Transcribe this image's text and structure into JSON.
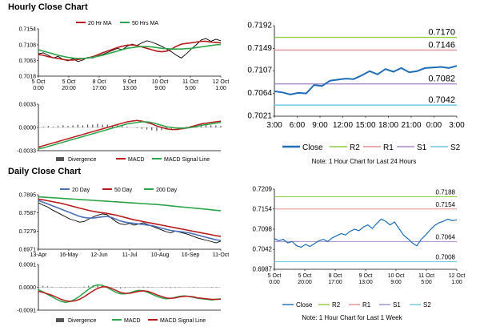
{
  "sections": {
    "hourly_title": "Hourly Close Chart",
    "daily_title": "Daily Close Chart"
  },
  "colors": {
    "close": "#1f6db4",
    "r2": "#8fce3c",
    "r1": "#e38f8f",
    "s1": "#a58cc9",
    "s2": "#6cc9df",
    "ma_red": "#b51c1c",
    "ma_green": "#2ca44a",
    "ma_blue": "#4a6fb8",
    "divergence": "#555555"
  },
  "chart_data": [
    {
      "id": "hourly_price",
      "type": "line",
      "title": "",
      "legend": [
        "20 Hr MA",
        "50 Hrs MA"
      ],
      "x_labels": [
        "5 Oct\n0:00",
        "5 Oct\n20:00",
        "8 Oct\n17:00",
        "9 Oct\n13:00",
        "10 Oct\n9:00",
        "11 Oct\n5:00",
        "12 Oct\n1:00"
      ],
      "y_ticks": [
        "0.7154",
        "0.7108",
        "0.7063",
        "0.7018"
      ],
      "ylim": [
        0.7018,
        0.7154
      ],
      "series": [
        {
          "name": "Close",
          "values": [
            0.7082,
            0.7085,
            0.7078,
            0.707,
            0.7075,
            0.7066,
            0.7062,
            0.7068,
            0.706,
            0.7064,
            0.7072,
            0.707,
            0.7076,
            0.708,
            0.7086,
            0.7092,
            0.7098,
            0.7094,
            0.7104,
            0.711,
            0.7106,
            0.7114,
            0.712,
            0.7116,
            0.711,
            0.7104,
            0.7096,
            0.7088,
            0.7078,
            0.707,
            0.7082,
            0.7096,
            0.7108,
            0.7122,
            0.7126,
            0.7118,
            0.7124,
            0.712
          ]
        },
        {
          "name": "20 Hr MA",
          "values": [
            0.708,
            0.7078,
            0.7074,
            0.7071,
            0.7069,
            0.7066,
            0.7064,
            0.7064,
            0.7066,
            0.7068,
            0.707,
            0.7074,
            0.7079,
            0.7085,
            0.709,
            0.7095,
            0.71,
            0.7104,
            0.7107,
            0.7108,
            0.7106,
            0.7102,
            0.7098,
            0.7094,
            0.709,
            0.7088,
            0.709,
            0.7096,
            0.7104,
            0.711,
            0.7112,
            0.7114,
            0.7116,
            0.7118,
            0.7118,
            0.7116,
            0.7115,
            0.7114
          ]
        },
        {
          "name": "50 Hrs MA",
          "values": [
            0.7094,
            0.709,
            0.7086,
            0.7082,
            0.7078,
            0.7075,
            0.7072,
            0.707,
            0.7069,
            0.7069,
            0.707,
            0.7072,
            0.7075,
            0.7078,
            0.7082,
            0.7086,
            0.709,
            0.7094,
            0.7098,
            0.71,
            0.7102,
            0.7103,
            0.7103,
            0.7102,
            0.71,
            0.7098,
            0.7097,
            0.7096,
            0.7096,
            0.7096,
            0.7097,
            0.7098,
            0.71,
            0.7102,
            0.7104,
            0.7106,
            0.7108,
            0.7109
          ]
        }
      ]
    },
    {
      "id": "hourly_macd",
      "type": "line",
      "legend": [
        "Divergence",
        "MACD",
        "MACD Signal Line"
      ],
      "y_ticks": [
        "0.0033",
        "0.0000",
        "-0.0033"
      ],
      "ylim": [
        -0.0033,
        0.0033
      ],
      "series": [
        {
          "name": "Divergence",
          "values": [
            0.0,
            0.0001,
            0.0002,
            0.0001,
            0.0002,
            0.0003,
            0.0002,
            0.0003,
            0.0004,
            0.0003,
            0.0004,
            0.0004,
            0.0005,
            0.0004,
            0.0004,
            0.0003,
            0.0003,
            0.0002,
            0.0001,
            0.0,
            -0.0001,
            -0.0002,
            -0.0003,
            -0.0004,
            -0.0005,
            -0.0004,
            -0.0003,
            -0.0002,
            -0.0001,
            0.0,
            0.0001,
            0.0002,
            0.0003,
            0.0004,
            0.0004,
            0.0003,
            0.0003,
            0.0002
          ]
        },
        {
          "name": "MACD",
          "values": [
            -0.0028,
            -0.0026,
            -0.0024,
            -0.0022,
            -0.002,
            -0.0018,
            -0.0016,
            -0.0014,
            -0.0012,
            -0.001,
            -0.0008,
            -0.0006,
            -0.0004,
            -0.0002,
            0.0,
            0.0002,
            0.0004,
            0.0006,
            0.0008,
            0.0009,
            0.001,
            0.0009,
            0.0007,
            0.0005,
            0.0002,
            0.0,
            -0.0002,
            -0.0003,
            -0.0003,
            -0.0002,
            -0.0001,
            0.0001,
            0.0003,
            0.0005,
            0.0006,
            0.0007,
            0.0008,
            0.0009
          ]
        },
        {
          "name": "MACD Signal Line",
          "values": [
            -0.003,
            -0.0029,
            -0.0027,
            -0.0025,
            -0.0023,
            -0.0021,
            -0.0019,
            -0.0017,
            -0.0015,
            -0.0013,
            -0.0011,
            -0.0009,
            -0.0007,
            -0.0005,
            -0.0003,
            -0.0001,
            0.0001,
            0.0003,
            0.0005,
            0.0006,
            0.0007,
            0.0008,
            0.0008,
            0.0007,
            0.0005,
            0.0003,
            0.0001,
            0.0,
            -0.0001,
            -0.0001,
            -0.0001,
            0.0,
            0.0001,
            0.0003,
            0.0004,
            0.0005,
            0.0006,
            0.0007
          ]
        }
      ]
    },
    {
      "id": "hourly_24h",
      "type": "line",
      "x_labels": [
        "3:00",
        "6:00",
        "9:00",
        "12:00",
        "15:00",
        "18:00",
        "21:00",
        "0:00",
        "3:00"
      ],
      "y_ticks": [
        "0.7192",
        "0.7149",
        "0.7107",
        "0.7064",
        "0.7021"
      ],
      "ylim": [
        0.7021,
        0.7192
      ],
      "levels": [
        {
          "name": "R2",
          "value": 0.717,
          "label": "0.7170"
        },
        {
          "name": "R1",
          "value": 0.7146,
          "label": "0.7146"
        },
        {
          "name": "S1",
          "value": 0.7082,
          "label": "0.7082"
        },
        {
          "name": "S2",
          "value": 0.7042,
          "label": "0.7042"
        }
      ],
      "series": [
        {
          "name": "Close",
          "values": [
            0.7068,
            0.7066,
            0.7062,
            0.7065,
            0.7064,
            0.708,
            0.7078,
            0.7088,
            0.709,
            0.7092,
            0.7091,
            0.7098,
            0.7106,
            0.71,
            0.711,
            0.7105,
            0.7112,
            0.7104,
            0.7106,
            0.7112,
            0.7113,
            0.7114,
            0.7112,
            0.7116
          ]
        }
      ],
      "legend": [
        "Close",
        "R2",
        "R1",
        "S1",
        "S2"
      ],
      "note": "Note: 1 Hour Chart for Last 24 Hours"
    },
    {
      "id": "daily_price",
      "type": "line",
      "legend": [
        "20 Day",
        "50 Day",
        "200 Day"
      ],
      "x_labels": [
        "13-Apr",
        "16-May",
        "12-Jun",
        "11-Jul",
        "10-Aug",
        "10-Sep",
        "11-Oct"
      ],
      "y_ticks": [
        "0.7895",
        "0.7587",
        "0.7279",
        "0.6971"
      ],
      "ylim": [
        0.6971,
        0.7895
      ],
      "series": [
        {
          "name": "Close",
          "values": [
            0.776,
            0.772,
            0.769,
            0.764,
            0.76,
            0.756,
            0.752,
            0.748,
            0.746,
            0.743,
            0.744,
            0.748,
            0.752,
            0.755,
            0.757,
            0.756,
            0.75,
            0.744,
            0.74,
            0.739,
            0.741,
            0.738,
            0.74,
            0.742,
            0.739,
            0.736,
            0.733,
            0.73,
            0.727,
            0.725,
            0.728,
            0.726,
            0.724,
            0.722,
            0.719,
            0.716,
            0.714,
            0.712,
            0.71,
            0.708,
            0.711
          ]
        },
        {
          "name": "20 Day",
          "values": [
            0.78,
            0.777,
            0.774,
            0.771,
            0.768,
            0.765,
            0.762,
            0.759,
            0.756,
            0.753,
            0.751,
            0.75,
            0.75,
            0.751,
            0.752,
            0.753,
            0.751,
            0.748,
            0.745,
            0.743,
            0.742,
            0.741,
            0.74,
            0.739,
            0.738,
            0.737,
            0.735,
            0.733,
            0.731,
            0.729,
            0.728,
            0.727,
            0.726,
            0.725,
            0.723,
            0.721,
            0.719,
            0.717,
            0.715,
            0.713,
            0.712
          ]
        },
        {
          "name": "50 Day",
          "values": [
            0.782,
            0.781,
            0.7795,
            0.778,
            0.7765,
            0.775,
            0.773,
            0.771,
            0.769,
            0.767,
            0.765,
            0.763,
            0.7615,
            0.76,
            0.759,
            0.758,
            0.7565,
            0.755,
            0.753,
            0.751,
            0.749,
            0.747,
            0.7455,
            0.744,
            0.7425,
            0.741,
            0.7395,
            0.738,
            0.7365,
            0.735,
            0.7335,
            0.732,
            0.7305,
            0.729,
            0.7275,
            0.726,
            0.7245,
            0.723,
            0.7215,
            0.72,
            0.719
          ]
        },
        {
          "name": "200 Day",
          "values": [
            0.786,
            0.7855,
            0.785,
            0.7845,
            0.784,
            0.7835,
            0.783,
            0.7825,
            0.782,
            0.7815,
            0.781,
            0.7805,
            0.78,
            0.7795,
            0.779,
            0.7785,
            0.778,
            0.7775,
            0.777,
            0.7765,
            0.776,
            0.7755,
            0.775,
            0.7745,
            0.774,
            0.7735,
            0.773,
            0.7722,
            0.7715,
            0.7708,
            0.77,
            0.7692,
            0.7685,
            0.7678,
            0.767,
            0.7662,
            0.7655,
            0.7648,
            0.764,
            0.7632,
            0.7625
          ]
        }
      ]
    },
    {
      "id": "daily_macd",
      "type": "line",
      "legend": [
        "Divergence",
        "MACD",
        "MACD Signal Line"
      ],
      "y_ticks": [
        "0.0091",
        "0.0000",
        "-0.0091"
      ],
      "ylim": [
        -0.0091,
        0.0091
      ],
      "series": [
        {
          "name": "Divergence",
          "values": [
            0.0005,
            0.0006,
            0.0004,
            0.0002,
            0.0,
            -0.0002,
            -0.0003,
            -0.0002,
            -0.0001,
            0.0001,
            0.0003,
            0.0006,
            0.0008,
            0.0009,
            0.0007,
            0.0004,
            0.0001,
            -0.0002,
            -0.0004,
            -0.0003,
            -0.0001,
            0.0001,
            0.0002,
            0.0003,
            0.0002,
            0.0001,
            0.0,
            -0.0001,
            -0.0002,
            -0.0003,
            -0.0002,
            -0.0001,
            0.0,
            0.0001,
            0.0002,
            0.0001,
            0.0,
            -0.0001,
            -0.0002,
            -0.0001,
            0.0
          ]
        },
        {
          "name": "MACD",
          "values": [
            -0.001,
            -0.0018,
            -0.0028,
            -0.0038,
            -0.0048,
            -0.0056,
            -0.006,
            -0.0056,
            -0.0048,
            -0.0036,
            -0.0022,
            -0.0008,
            0.0004,
            0.001,
            0.0008,
            0.0,
            -0.001,
            -0.002,
            -0.0026,
            -0.0026,
            -0.0022,
            -0.0016,
            -0.0012,
            -0.0014,
            -0.002,
            -0.0028,
            -0.0036,
            -0.0042,
            -0.0046,
            -0.0044,
            -0.004,
            -0.0036,
            -0.0034,
            -0.0036,
            -0.004,
            -0.0044,
            -0.0046,
            -0.0048,
            -0.005,
            -0.0048,
            -0.0046
          ]
        },
        {
          "name": "MACD Signal Line",
          "values": [
            -0.0016,
            -0.002,
            -0.0026,
            -0.0032,
            -0.004,
            -0.0048,
            -0.0054,
            -0.0056,
            -0.0054,
            -0.0048,
            -0.0038,
            -0.0026,
            -0.0014,
            -0.0004,
            0.0002,
            0.0002,
            -0.0004,
            -0.0012,
            -0.002,
            -0.0024,
            -0.0024,
            -0.002,
            -0.0016,
            -0.0014,
            -0.0016,
            -0.0022,
            -0.003,
            -0.0036,
            -0.0042,
            -0.0044,
            -0.0042,
            -0.0038,
            -0.0036,
            -0.0036,
            -0.0038,
            -0.0042,
            -0.0044,
            -0.0046,
            -0.0048,
            -0.0048,
            -0.0047
          ]
        }
      ]
    },
    {
      "id": "daily_week",
      "type": "line",
      "x_labels": [
        "5 Oct\n0:00",
        "5 Oct\n20:00",
        "8 Oct\n17:00",
        "9 Oct\n13:00",
        "10 Oct\n9:00",
        "11 Oct\n5:00",
        "12 Oct\n1:00"
      ],
      "y_ticks": [
        "0.7209",
        "0.7154",
        "0.7098",
        "0.7042",
        "0.6987"
      ],
      "ylim": [
        0.6987,
        0.7209
      ],
      "levels": [
        {
          "name": "R2",
          "value": 0.7188,
          "label": "0.7188"
        },
        {
          "name": "R1",
          "value": 0.7154,
          "label": "0.7154"
        },
        {
          "name": "S1",
          "value": 0.7064,
          "label": "0.7064"
        },
        {
          "name": "S2",
          "value": 0.7008,
          "label": "0.7008"
        }
      ],
      "series": [
        {
          "name": "Close",
          "values": [
            0.7072,
            0.7066,
            0.707,
            0.706,
            0.7064,
            0.7052,
            0.7048,
            0.7056,
            0.705,
            0.7058,
            0.7066,
            0.707,
            0.7064,
            0.7074,
            0.708,
            0.7086,
            0.7082,
            0.7092,
            0.7098,
            0.7094,
            0.7104,
            0.711,
            0.71,
            0.7114,
            0.7126,
            0.712,
            0.711,
            0.7118,
            0.71,
            0.7082,
            0.7072,
            0.706,
            0.7052,
            0.707,
            0.7082,
            0.7096,
            0.7108,
            0.7116,
            0.712,
            0.7126,
            0.7122,
            0.7124
          ]
        }
      ],
      "legend": [
        "Close",
        "R2",
        "R1",
        "S1",
        "S2"
      ],
      "note": "Note: 1 Hour Chart for Last 1 Week"
    }
  ]
}
